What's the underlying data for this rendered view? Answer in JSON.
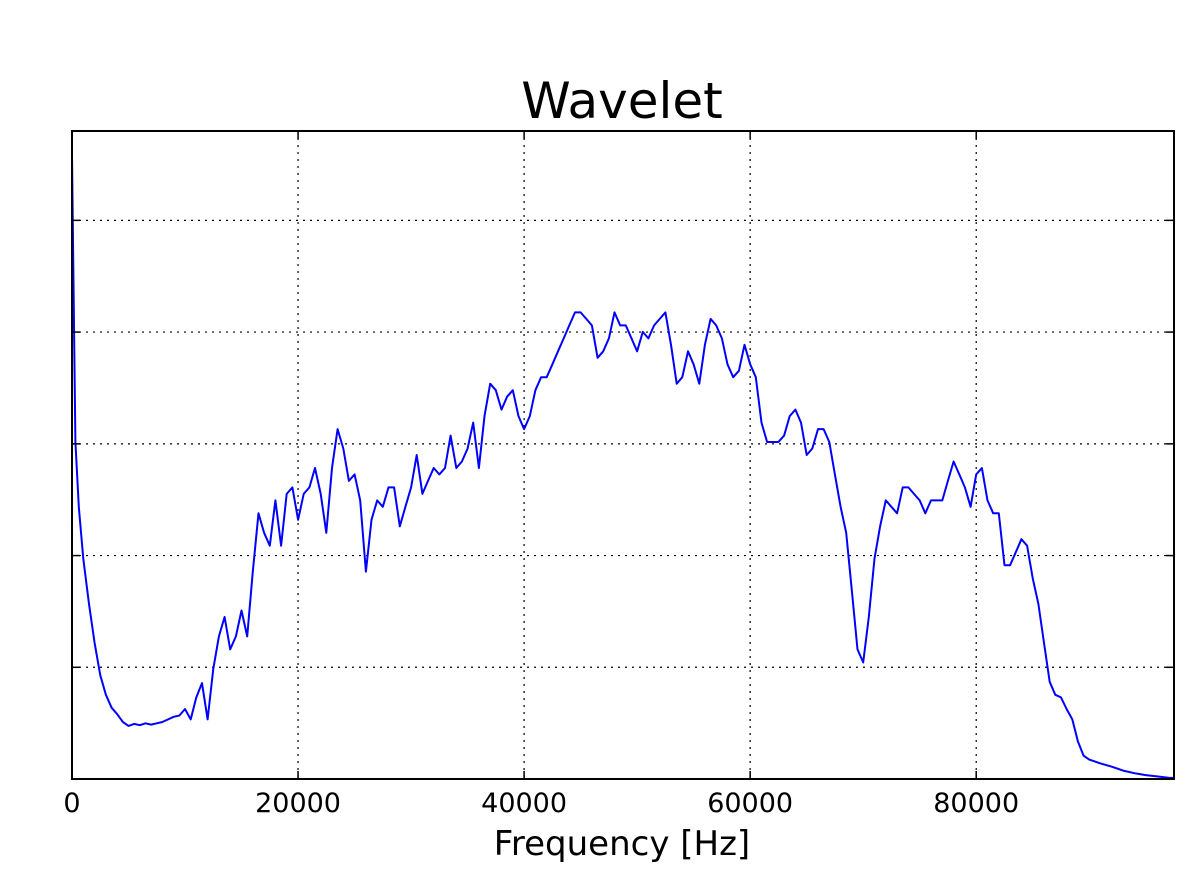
{
  "chart_data": {
    "type": "line",
    "title": "Wavelet",
    "xlabel": "Frequency [Hz]",
    "ylabel": "",
    "xlim": [
      0,
      97500
    ],
    "ylim": [
      0,
      1
    ],
    "x_ticks": [
      0,
      20000,
      40000,
      60000,
      80000
    ],
    "x_tick_labels": [
      "0",
      "20000",
      "40000",
      "60000",
      "80000"
    ],
    "y_grid": [
      0.1724,
      0.3448,
      0.5172,
      0.6897,
      0.8621
    ],
    "grid": true,
    "series": [
      {
        "color": "#0000ff",
        "points": [
          [
            0,
            0.96
          ],
          [
            300,
            0.52
          ],
          [
            600,
            0.42
          ],
          [
            1000,
            0.34
          ],
          [
            1500,
            0.27
          ],
          [
            2000,
            0.21
          ],
          [
            2500,
            0.16
          ],
          [
            3000,
            0.13
          ],
          [
            3500,
            0.11
          ],
          [
            4000,
            0.1
          ],
          [
            4500,
            0.088
          ],
          [
            5000,
            0.082
          ],
          [
            5500,
            0.085
          ],
          [
            6000,
            0.083
          ],
          [
            6500,
            0.086
          ],
          [
            7000,
            0.084
          ],
          [
            7500,
            0.086
          ],
          [
            8000,
            0.088
          ],
          [
            8500,
            0.092
          ],
          [
            9000,
            0.096
          ],
          [
            9500,
            0.098
          ],
          [
            10000,
            0.108
          ],
          [
            10500,
            0.092
          ],
          [
            11000,
            0.126
          ],
          [
            11500,
            0.148
          ],
          [
            12000,
            0.092
          ],
          [
            12500,
            0.17
          ],
          [
            13000,
            0.22
          ],
          [
            13500,
            0.25
          ],
          [
            14000,
            0.2
          ],
          [
            14500,
            0.22
          ],
          [
            15000,
            0.26
          ],
          [
            15500,
            0.22
          ],
          [
            16000,
            0.32
          ],
          [
            16500,
            0.41
          ],
          [
            17000,
            0.38
          ],
          [
            17500,
            0.36
          ],
          [
            18000,
            0.43
          ],
          [
            18500,
            0.36
          ],
          [
            19000,
            0.44
          ],
          [
            19500,
            0.45
          ],
          [
            20000,
            0.4
          ],
          [
            20500,
            0.44
          ],
          [
            21000,
            0.45
          ],
          [
            21500,
            0.48
          ],
          [
            22000,
            0.44
          ],
          [
            22500,
            0.38
          ],
          [
            23000,
            0.48
          ],
          [
            23500,
            0.54
          ],
          [
            24000,
            0.51
          ],
          [
            24500,
            0.46
          ],
          [
            25000,
            0.47
          ],
          [
            25500,
            0.43
          ],
          [
            26000,
            0.32
          ],
          [
            26500,
            0.4
          ],
          [
            27000,
            0.43
          ],
          [
            27500,
            0.42
          ],
          [
            28000,
            0.45
          ],
          [
            28500,
            0.45
          ],
          [
            29000,
            0.39
          ],
          [
            29500,
            0.42
          ],
          [
            30000,
            0.45
          ],
          [
            30500,
            0.5
          ],
          [
            31000,
            0.44
          ],
          [
            31500,
            0.46
          ],
          [
            32000,
            0.48
          ],
          [
            32500,
            0.47
          ],
          [
            33000,
            0.48
          ],
          [
            33500,
            0.53
          ],
          [
            34000,
            0.48
          ],
          [
            34500,
            0.49
          ],
          [
            35000,
            0.51
          ],
          [
            35500,
            0.55
          ],
          [
            36000,
            0.48
          ],
          [
            36500,
            0.56
          ],
          [
            37000,
            0.61
          ],
          [
            37500,
            0.6
          ],
          [
            38000,
            0.57
          ],
          [
            38500,
            0.59
          ],
          [
            39000,
            0.6
          ],
          [
            39500,
            0.56
          ],
          [
            40000,
            0.54
          ],
          [
            40500,
            0.56
          ],
          [
            41000,
            0.6
          ],
          [
            41500,
            0.62
          ],
          [
            42000,
            0.62
          ],
          [
            42500,
            0.64
          ],
          [
            43000,
            0.66
          ],
          [
            43500,
            0.68
          ],
          [
            44000,
            0.7
          ],
          [
            44500,
            0.72
          ],
          [
            45000,
            0.72
          ],
          [
            45500,
            0.71
          ],
          [
            46000,
            0.7
          ],
          [
            46500,
            0.65
          ],
          [
            47000,
            0.66
          ],
          [
            47500,
            0.68
          ],
          [
            48000,
            0.72
          ],
          [
            48500,
            0.7
          ],
          [
            49000,
            0.7
          ],
          [
            49500,
            0.68
          ],
          [
            50000,
            0.66
          ],
          [
            50500,
            0.69
          ],
          [
            51000,
            0.68
          ],
          [
            51500,
            0.7
          ],
          [
            52500,
            0.72
          ],
          [
            53000,
            0.67
          ],
          [
            53500,
            0.61
          ],
          [
            54000,
            0.62
          ],
          [
            54500,
            0.66
          ],
          [
            55000,
            0.64
          ],
          [
            55500,
            0.61
          ],
          [
            56000,
            0.67
          ],
          [
            56500,
            0.71
          ],
          [
            57000,
            0.7
          ],
          [
            57500,
            0.68
          ],
          [
            58000,
            0.64
          ],
          [
            58500,
            0.62
          ],
          [
            59000,
            0.63
          ],
          [
            59500,
            0.67
          ],
          [
            60000,
            0.64
          ],
          [
            60500,
            0.62
          ],
          [
            61000,
            0.55
          ],
          [
            61500,
            0.52
          ],
          [
            62000,
            0.52
          ],
          [
            62500,
            0.52
          ],
          [
            63000,
            0.53
          ],
          [
            63500,
            0.56
          ],
          [
            64000,
            0.57
          ],
          [
            64500,
            0.55
          ],
          [
            65000,
            0.5
          ],
          [
            65500,
            0.51
          ],
          [
            66000,
            0.54
          ],
          [
            66500,
            0.54
          ],
          [
            67000,
            0.52
          ],
          [
            67500,
            0.47
          ],
          [
            68000,
            0.42
          ],
          [
            68500,
            0.38
          ],
          [
            69000,
            0.29
          ],
          [
            69500,
            0.2
          ],
          [
            70000,
            0.18
          ],
          [
            70500,
            0.25
          ],
          [
            71000,
            0.34
          ],
          [
            71500,
            0.39
          ],
          [
            72000,
            0.43
          ],
          [
            72500,
            0.42
          ],
          [
            73000,
            0.41
          ],
          [
            73500,
            0.45
          ],
          [
            74000,
            0.45
          ],
          [
            74500,
            0.44
          ],
          [
            75000,
            0.43
          ],
          [
            75500,
            0.41
          ],
          [
            76000,
            0.43
          ],
          [
            76500,
            0.43
          ],
          [
            77000,
            0.43
          ],
          [
            77500,
            0.46
          ],
          [
            78000,
            0.49
          ],
          [
            78500,
            0.47
          ],
          [
            79000,
            0.45
          ],
          [
            79500,
            0.42
          ],
          [
            80000,
            0.47
          ],
          [
            80500,
            0.48
          ],
          [
            81000,
            0.43
          ],
          [
            81500,
            0.41
          ],
          [
            82000,
            0.41
          ],
          [
            82500,
            0.33
          ],
          [
            83000,
            0.33
          ],
          [
            83500,
            0.35
          ],
          [
            84000,
            0.37
          ],
          [
            84500,
            0.36
          ],
          [
            85000,
            0.31
          ],
          [
            85500,
            0.27
          ],
          [
            86000,
            0.21
          ],
          [
            86500,
            0.15
          ],
          [
            87000,
            0.13
          ],
          [
            87500,
            0.126
          ],
          [
            88000,
            0.108
          ],
          [
            88500,
            0.092
          ],
          [
            89000,
            0.058
          ],
          [
            89500,
            0.036
          ],
          [
            90000,
            0.03
          ],
          [
            91000,
            0.024
          ],
          [
            92000,
            0.019
          ],
          [
            93000,
            0.013
          ],
          [
            94000,
            0.009
          ],
          [
            95000,
            0.006
          ],
          [
            96000,
            0.004
          ],
          [
            97000,
            0.002
          ],
          [
            97500,
            0.0015
          ]
        ]
      }
    ]
  }
}
